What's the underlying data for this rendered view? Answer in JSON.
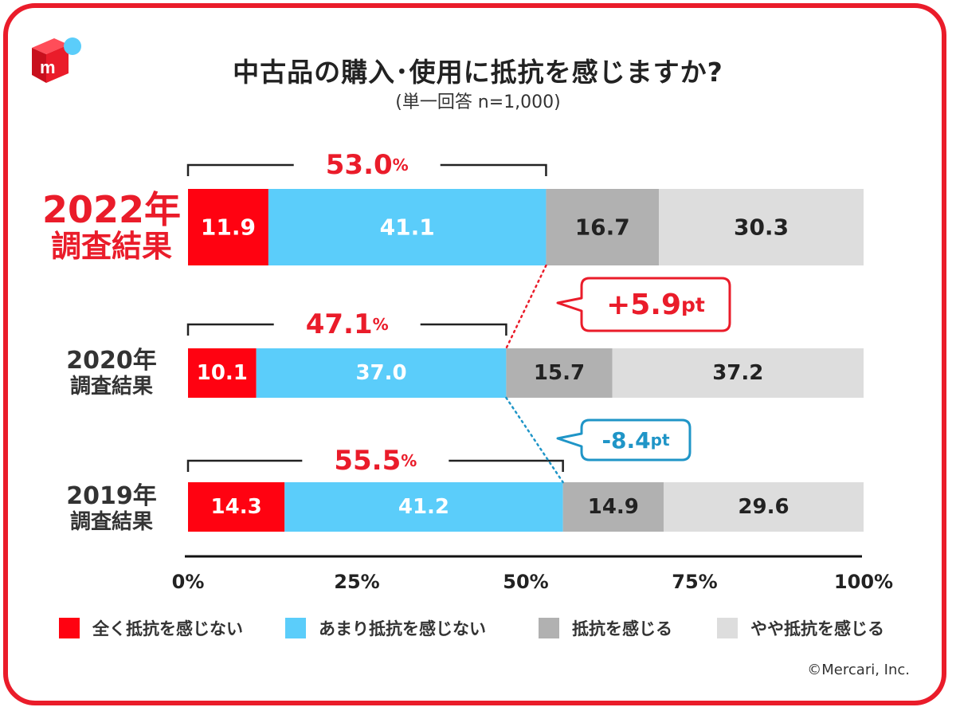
{
  "header": {
    "title": "中古品の購入･使用に抵抗を感じますか?",
    "subtitle": "(単一回答 n=1,000)"
  },
  "logo": {
    "icon": "mercari-box-icon",
    "letter": "m"
  },
  "colors": {
    "not_at_all": "#ff0211",
    "not_much": "#5bcdfa",
    "feel": "#b1b1b1",
    "somewhat": "#dddddd",
    "accent_red": "#ea1c2a",
    "accent_blue": "#1f95c7"
  },
  "rows": [
    {
      "year": "2022年",
      "caption": "調査結果"
    },
    {
      "year": "2020年",
      "caption": "調査結果"
    },
    {
      "year": "2019年",
      "caption": "調査結果"
    }
  ],
  "chart_data": {
    "type": "bar",
    "orientation": "horizontal-stacked-100",
    "categories": [
      "2022年 調査結果",
      "2020年 調査結果",
      "2019年 調査結果"
    ],
    "series": [
      {
        "name": "全く抵抗を感じない",
        "values": [
          11.9,
          10.1,
          14.3
        ],
        "labels": [
          "11.9",
          "10.1",
          "14.3"
        ]
      },
      {
        "name": "あまり抵抗を感じない",
        "values": [
          41.1,
          37.0,
          41.2
        ],
        "labels": [
          "41.1",
          "37.0",
          "41.2"
        ]
      },
      {
        "name": "抵抗を感じる",
        "values": [
          16.7,
          15.7,
          14.9
        ],
        "labels": [
          "16.7",
          "15.7",
          "14.9"
        ]
      },
      {
        "name": "やや抵抗を感じる",
        "values": [
          30.3,
          37.2,
          29.6
        ],
        "labels": [
          "30.3",
          "37.2",
          "29.6"
        ]
      }
    ],
    "bracket_totals": [
      {
        "value": "53.0",
        "unit": "%"
      },
      {
        "value": "47.1",
        "unit": "%"
      },
      {
        "value": "55.5",
        "unit": "%"
      }
    ],
    "annotations": [
      {
        "text": "+5.9",
        "unit": "pt",
        "color": "red"
      },
      {
        "text": "-8.4",
        "unit": "pt",
        "color": "blue"
      }
    ],
    "xaxis": {
      "ticks": [
        "0%",
        "25%",
        "50%",
        "75%",
        "100%"
      ],
      "range": [
        0,
        100
      ]
    },
    "legend_position": "bottom"
  },
  "footer": {
    "copyright": "©Mercari, Inc."
  }
}
